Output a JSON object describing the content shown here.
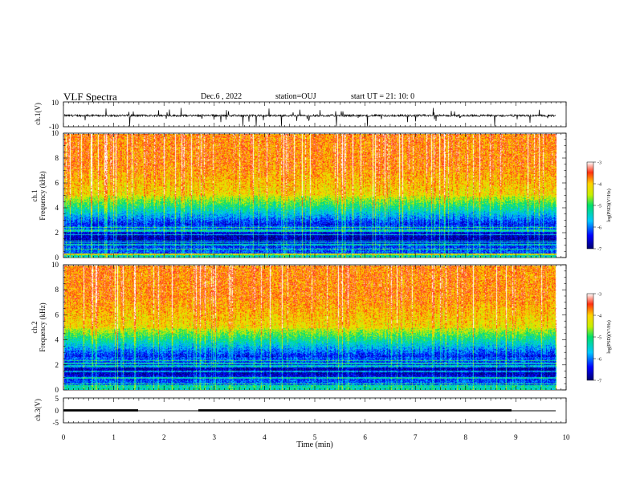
{
  "header": {
    "title": "VLF Spectra",
    "date": "Dec.6 , 2022",
    "station": "station=OUJ",
    "start": "start UT = 21: 10: 0"
  },
  "chart_data": [
    {
      "type": "line",
      "ylabel": "ch.1(V)",
      "ylim": [
        -10,
        10
      ],
      "yticks": [
        "10",
        "-10"
      ],
      "x_range": [
        0,
        10
      ]
    },
    {
      "type": "heatmap",
      "ylabel_line1": "ch.1",
      "ylabel_line2": "Frequency (kHz)",
      "ylim": [
        0,
        10
      ],
      "yticks": [
        "0",
        "2",
        "4",
        "6",
        "8",
        "10"
      ],
      "x_range": [
        0,
        9.8
      ],
      "colorbar": {
        "label": "log(PSD)(V²/Hz)",
        "ticks": [
          "-3",
          "-4",
          "-5",
          "-6",
          "-7"
        ],
        "range": [
          -7,
          -3
        ]
      }
    },
    {
      "type": "heatmap",
      "ylabel_line1": "ch.2",
      "ylabel_line2": "Frequency (kHz)",
      "ylim": [
        0,
        10
      ],
      "yticks": [
        "0",
        "2",
        "4",
        "6",
        "8",
        "10"
      ],
      "x_range": [
        0,
        9.8
      ],
      "colorbar": {
        "label": "log(PSD)(V²/Hz)",
        "ticks": [
          "-3",
          "-4",
          "-5",
          "-6",
          "-7"
        ],
        "range": [
          -7,
          -3
        ]
      }
    },
    {
      "type": "line",
      "ylabel": "ch.3(V)",
      "ylim": [
        -5,
        5
      ],
      "yticks": [
        "5",
        "0",
        "-5"
      ],
      "x_range": [
        0,
        10
      ]
    }
  ],
  "xaxis": {
    "label": "Time (min)",
    "ticks": [
      "0",
      "1",
      "2",
      "3",
      "4",
      "5",
      "6",
      "7",
      "8",
      "9",
      "10"
    ]
  },
  "colors": {
    "spec_high": "#ff2a10",
    "spec_mid": "#ffd400",
    "spec_low": "#00e06a",
    "spec_floor": "#000080"
  }
}
